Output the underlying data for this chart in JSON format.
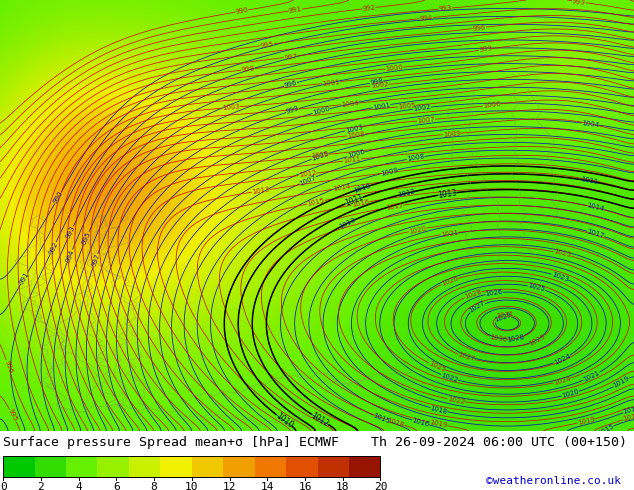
{
  "title_line1": "Surface pressure Spread mean+σ [hPa] ECMWF",
  "title_line2": "Th 26-09-2024 06:00 UTC (00+150)",
  "colorbar_ticks": [
    0,
    2,
    4,
    6,
    8,
    10,
    12,
    14,
    16,
    18,
    20
  ],
  "colorbar_colors": [
    "#00c800",
    "#32dc00",
    "#64f000",
    "#96f000",
    "#c8f000",
    "#f0f000",
    "#f0c800",
    "#f0a000",
    "#f07800",
    "#e05000",
    "#c03000",
    "#961400"
  ],
  "colorbar_vmin": 0,
  "colorbar_vmax": 20,
  "contour_color_blue": "#0000cd",
  "contour_color_red": "#cd0000",
  "contour_color_black": "#000000",
  "coastline_color": "#808080",
  "website": "©weatheronline.co.uk",
  "website_color": "#0000cd",
  "fig_bg": "#ffffff",
  "text_color": "#000000",
  "font_size_title": 9.5,
  "font_size_colorbar": 8,
  "font_size_website": 8
}
